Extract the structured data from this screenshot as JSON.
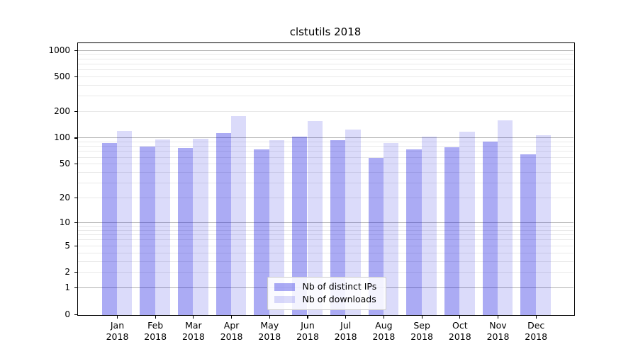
{
  "title": "clstutils 2018",
  "year": "2018",
  "legend": {
    "items": [
      {
        "label": "Nb of distinct IPs"
      },
      {
        "label": "Nb of downloads"
      }
    ]
  },
  "colors": {
    "ips_fill": "rgba(13,13,224,0.35)",
    "downloads_fill": "rgba(13,13,224,0.15)",
    "major_grid": "#b0b0b0",
    "minor_grid": "#e9e9e9",
    "axis": "#000000",
    "legend_border": "#cccccc"
  },
  "chart_data": {
    "type": "bar",
    "title": "clstutils 2018",
    "categories": [
      "Jan 2018",
      "Feb 2018",
      "Mar 2018",
      "Apr 2018",
      "May 2018",
      "Jun 2018",
      "Jul 2018",
      "Aug 2018",
      "Sep 2018",
      "Oct 2018",
      "Nov 2018",
      "Dec 2018"
    ],
    "month_labels": [
      "Jan",
      "Feb",
      "Mar",
      "Apr",
      "May",
      "Jun",
      "Jul",
      "Aug",
      "Sep",
      "Oct",
      "Nov",
      "Dec"
    ],
    "series": [
      {
        "name": "Nb of distinct IPs",
        "values": [
          88,
          80,
          77,
          115,
          74,
          104,
          95,
          60,
          74,
          79,
          91,
          66
        ]
      },
      {
        "name": "Nb of downloads",
        "values": [
          122,
          97,
          98,
          179,
          96,
          158,
          127,
          88,
          105,
          119,
          160,
          108
        ]
      }
    ],
    "xlabel": "",
    "ylabel": "",
    "yscale": "log1p",
    "yticks": [
      0,
      1,
      2,
      5,
      10,
      20,
      50,
      100,
      200,
      500,
      1000
    ],
    "ylim": [
      0,
      1200
    ],
    "grid": true,
    "legend_position": "inside lower center"
  }
}
